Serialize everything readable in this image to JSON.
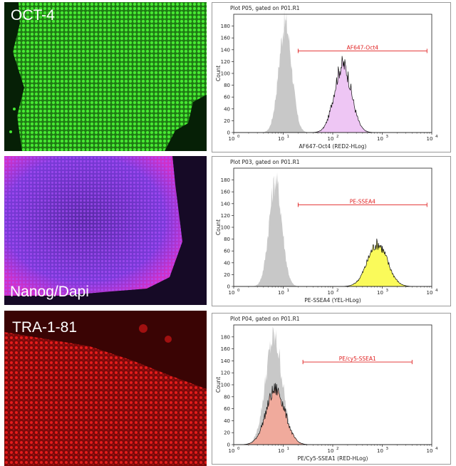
{
  "micrographs": [
    {
      "label": "OCT-4",
      "color": "#3cdc2a",
      "background": "#062006"
    },
    {
      "label": "Nanog/Dapi",
      "color": "#a040e0",
      "background": "#160a26"
    },
    {
      "label": "TRA-1-81",
      "color": "#e01818",
      "background": "#3a0404"
    }
  ],
  "chart_data": [
    {
      "type": "histogram",
      "title": "Plot P05, gated on P01.R1",
      "xlabel": "AF647-Oct4 (RED2-HLog)",
      "ylabel": "Count",
      "x_scale": "log",
      "xlim": [
        1,
        10000
      ],
      "ylim": [
        0,
        200
      ],
      "xticks": [
        "10",
        "10",
        "10",
        "10",
        "10"
      ],
      "xtick_exponents": [
        "0",
        "1",
        "2",
        "3",
        "4"
      ],
      "yticks": [
        0,
        20,
        40,
        60,
        80,
        100,
        120,
        140,
        160,
        180
      ],
      "gate": {
        "label": "AF647-Oct4",
        "range": [
          20,
          8000
        ]
      },
      "series": [
        {
          "role": "control",
          "fill": "#c8c8c8",
          "peak_x": 11,
          "peak_y": 185,
          "width_decades": 0.13
        },
        {
          "role": "stained",
          "fill": "#eec6f4",
          "peak_x": 160,
          "peak_y": 115,
          "width_decades": 0.17
        }
      ]
    },
    {
      "type": "histogram",
      "title": "Plot P03, gated on P01.R1",
      "xlabel": "PE-SSEA4 (YEL-HLog)",
      "ylabel": "Count",
      "x_scale": "log",
      "xlim": [
        1,
        10000
      ],
      "ylim": [
        0,
        200
      ],
      "xticks": [
        "10",
        "10",
        "10",
        "10",
        "10"
      ],
      "xtick_exponents": [
        "0",
        "1",
        "2",
        "3",
        "4"
      ],
      "yticks": [
        0,
        20,
        40,
        60,
        80,
        100,
        120,
        140,
        160,
        180
      ],
      "gate": {
        "label": "PE-SSEA4",
        "range": [
          20,
          8000
        ]
      },
      "series": [
        {
          "role": "control",
          "fill": "#c8c8c8",
          "peak_x": 7,
          "peak_y": 178,
          "width_decades": 0.13
        },
        {
          "role": "stained",
          "fill": "#fafa5a",
          "peak_x": 800,
          "peak_y": 72,
          "width_decades": 0.2
        }
      ]
    },
    {
      "type": "histogram",
      "title": "Plot P04, gated on P01.R1",
      "xlabel": "PE/Cy5-SSEA1 (RED-HLog)",
      "ylabel": "Count",
      "x_scale": "log",
      "xlim": [
        1,
        10000
      ],
      "ylim": [
        0,
        200
      ],
      "xticks": [
        "10",
        "10",
        "10",
        "10",
        "10"
      ],
      "xtick_exponents": [
        "0",
        "1",
        "2",
        "3",
        "4"
      ],
      "yticks": [
        0,
        20,
        40,
        60,
        80,
        100,
        120,
        140,
        160,
        180
      ],
      "gate": {
        "label": "PE/cy5-SSEA1",
        "range": [
          25,
          4000
        ]
      },
      "series": [
        {
          "role": "control",
          "fill": "#c8c8c8",
          "peak_x": 6.5,
          "peak_y": 178,
          "width_decades": 0.17
        },
        {
          "role": "stained",
          "fill": "#f0aa9c",
          "peak_x": 7,
          "peak_y": 92,
          "width_decades": 0.19
        }
      ]
    }
  ]
}
